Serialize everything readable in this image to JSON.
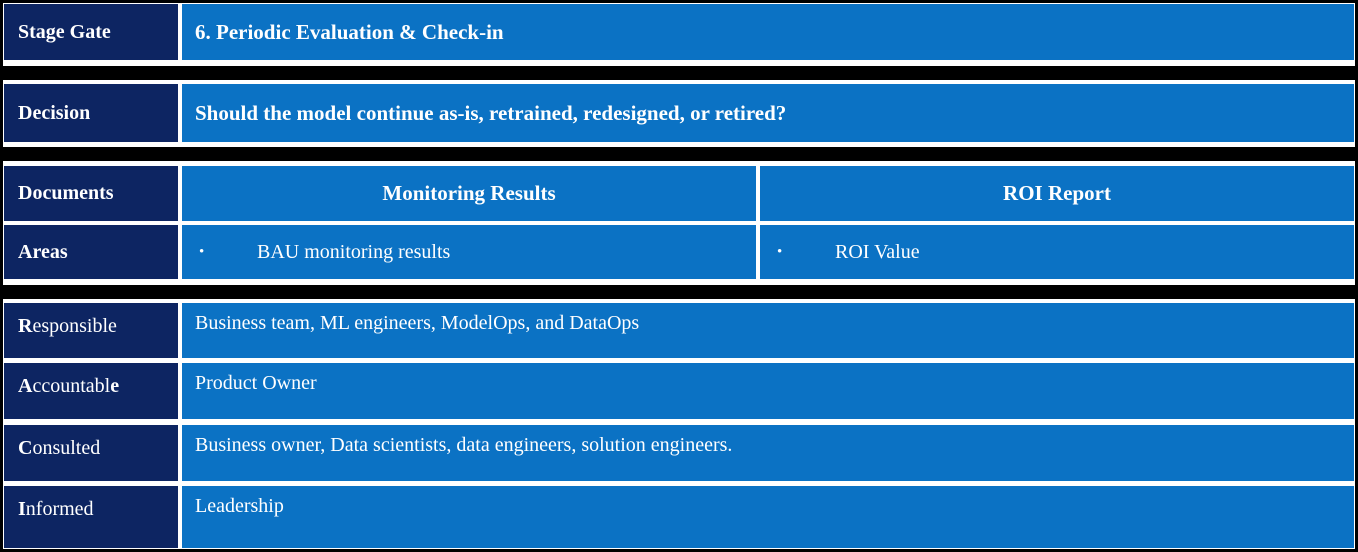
{
  "colors": {
    "navy": "#0d2562",
    "blue": "#0b72c4",
    "separator": "#000000",
    "text_on_dark": "#ffffff"
  },
  "icons": {
    "bullet": "•"
  },
  "stage_gate": {
    "label": "Stage Gate",
    "title": "6. Periodic Evaluation & Check-in"
  },
  "decision": {
    "label": "Decision",
    "question": "Should the model continue as-is, retrained, redesigned, or retired?"
  },
  "documents": {
    "label": "Documents",
    "columns": [
      {
        "title": "Monitoring Results"
      },
      {
        "title": "ROI Report"
      }
    ]
  },
  "areas": {
    "label": "Areas",
    "items": [
      {
        "text": "BAU monitoring results"
      },
      {
        "text": "ROI Value"
      }
    ]
  },
  "raci": [
    {
      "label_bold_first": "R",
      "label_mid": "esponsible",
      "label_bold_last": "",
      "value": "Business team, ML engineers, ModelOps, and DataOps"
    },
    {
      "label_bold_first": "A",
      "label_mid": "ccountabl",
      "label_bold_last": "e",
      "value": "Product Owner"
    },
    {
      "label_bold_first": "C",
      "label_mid": "onsulted",
      "label_bold_last": "",
      "value": "Business owner, Data scientists, data engineers, solution engineers."
    },
    {
      "label_bold_first": "I",
      "label_mid": "nformed",
      "label_bold_last": "",
      "value": "Leadership"
    }
  ]
}
